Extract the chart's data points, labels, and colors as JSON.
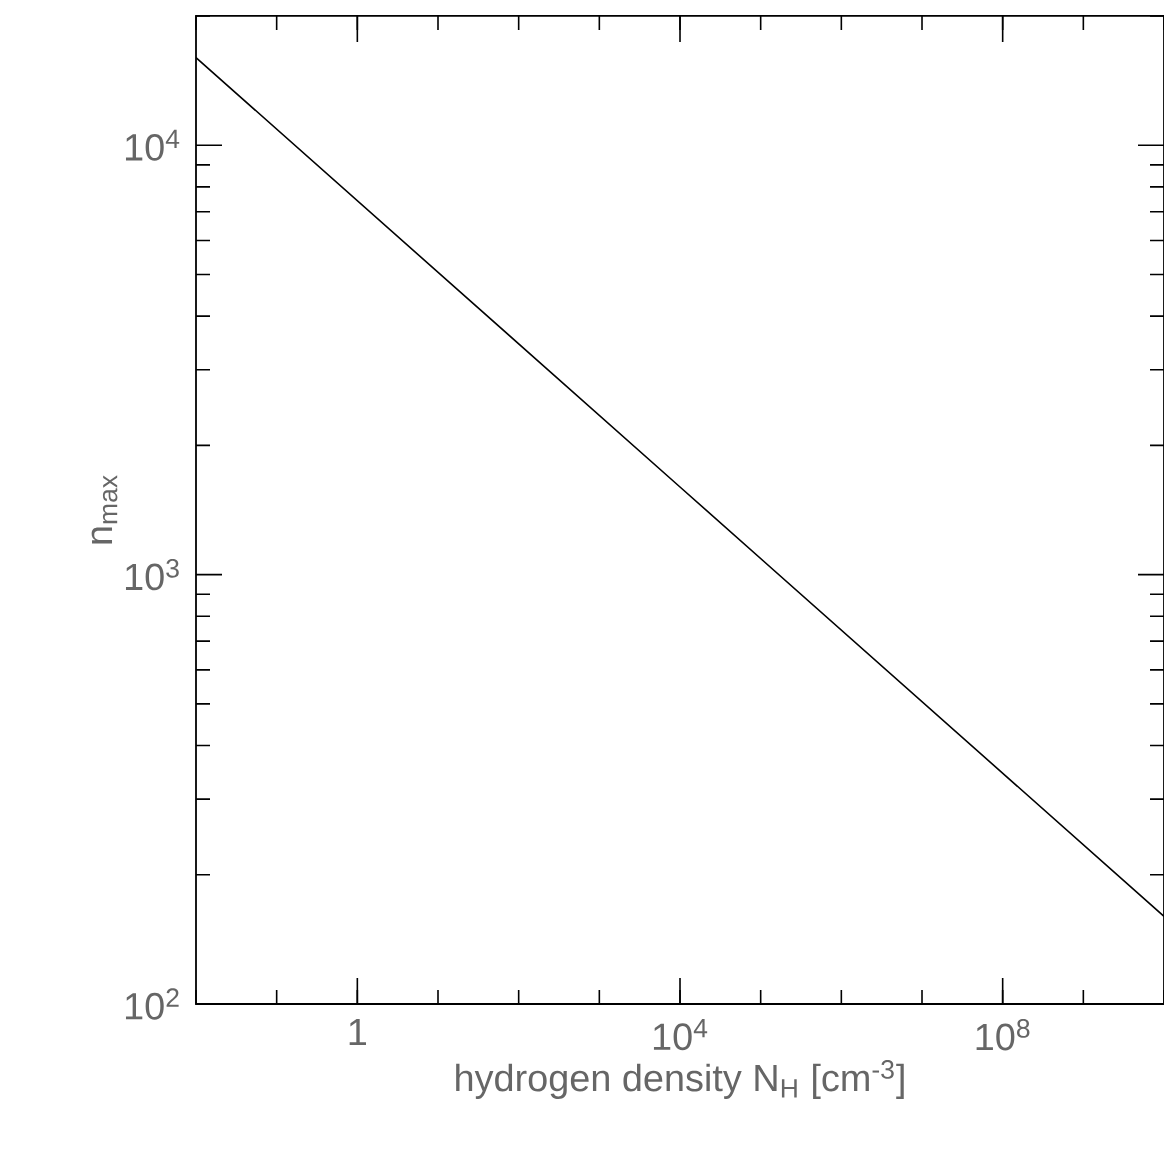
{
  "chart_data": {
    "type": "line",
    "xlabel": "hydrogen density N$_{H}$ [cm$^{-3}$]",
    "ylabel": "n$_{max}$",
    "log": "xy",
    "x": [
      0.01,
      10000,
      10000000000
    ],
    "series": [
      {
        "color": "#000000",
        "values": [
          16000,
          1600,
          160
        ]
      }
    ],
    "xlim": [
      0.01,
      10000000000
    ],
    "ylim": [
      100,
      20000
    ],
    "xticks": [
      1,
      {
        "value": 10000,
        "label": "10$^{4}$"
      },
      {
        "value": 100000000,
        "label": "10$^{8}$"
      }
    ],
    "yticks": [
      {
        "value": 100,
        "label": "10$^{2}$"
      },
      {
        "value": 1000,
        "label": "10$^{3}$"
      },
      {
        "value": 10000,
        "label": "10$^{4}$"
      }
    ],
    "grid": false,
    "marker": "none",
    "line_style": "solid"
  }
}
